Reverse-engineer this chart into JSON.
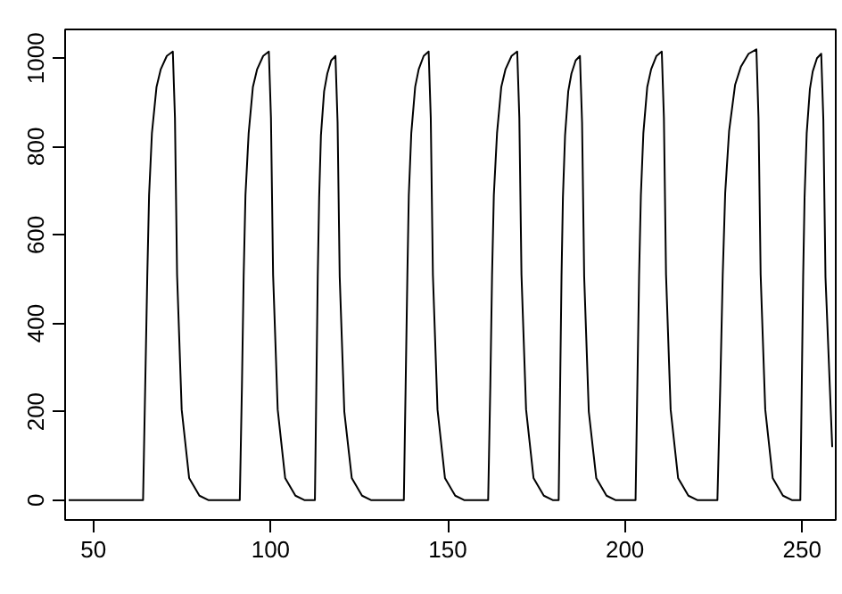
{
  "chart_data": {
    "type": "line",
    "color": "#000000",
    "xlim": [
      42,
      259.5
    ],
    "ylim": [
      -45,
      1065
    ],
    "xticks": [
      50,
      100,
      150,
      200,
      250
    ],
    "yticks": [
      0,
      200,
      400,
      600,
      800,
      1000
    ],
    "x": [
      43,
      64,
      64.6,
      65.2,
      65.7,
      66.5,
      67.8,
      69.0,
      70.7,
      72.4,
      73.0,
      73.6,
      74.9,
      77.0,
      79.9,
      82.4,
      91.3,
      91.9,
      92.4,
      92.9,
      93.8,
      95.0,
      96.2,
      97.9,
      99.5,
      100.1,
      100.7,
      102.0,
      104.1,
      107.0,
      109.5,
      112.5,
      112.9,
      113.3,
      113.7,
      114.2,
      115.1,
      116.0,
      117.1,
      118.3,
      118.9,
      119.5,
      120.8,
      122.9,
      125.8,
      128.3,
      137.6,
      138.1,
      138.6,
      139.0,
      139.7,
      140.8,
      141.8,
      143.2,
      144.6,
      145.2,
      145.8,
      147.1,
      149.2,
      152.1,
      154.6,
      161.4,
      162.0,
      162.5,
      163.0,
      163.9,
      165.1,
      166.3,
      168.0,
      169.6,
      170.2,
      170.8,
      172.1,
      174.2,
      177.1,
      179.6,
      181.3,
      181.7,
      182.1,
      182.5,
      183.1,
      184.0,
      184.9,
      186.1,
      187.3,
      187.9,
      188.5,
      189.8,
      191.9,
      194.8,
      197.3,
      203.0,
      203.5,
      204.0,
      204.5,
      205.2,
      206.3,
      207.4,
      208.9,
      210.4,
      211.0,
      211.6,
      212.9,
      215.0,
      217.9,
      220.4,
      226.1,
      226.9,
      227.6,
      228.3,
      229.4,
      231.1,
      232.7,
      234.9,
      237.1,
      237.7,
      238.3,
      239.6,
      241.7,
      244.6,
      247.1,
      249.5,
      249.9,
      250.3,
      250.7,
      251.3,
      252.2,
      253.0,
      254.2,
      255.4,
      256.0,
      256.6,
      258.5
    ],
    "values": [
      0,
      0,
      255,
      510,
      690,
      830,
      935,
      975,
      1005,
      1015,
      865,
      510,
      205,
      50,
      10,
      0,
      0,
      255,
      510,
      690,
      830,
      935,
      975,
      1005,
      1015,
      865,
      510,
      205,
      50,
      10,
      0,
      0,
      250,
      505,
      685,
      825,
      925,
      965,
      995,
      1005,
      855,
      505,
      200,
      50,
      10,
      0,
      0,
      255,
      510,
      690,
      830,
      935,
      975,
      1005,
      1015,
      865,
      510,
      205,
      50,
      10,
      0,
      0,
      255,
      510,
      690,
      830,
      935,
      975,
      1005,
      1015,
      865,
      510,
      205,
      50,
      10,
      0,
      0,
      250,
      505,
      685,
      825,
      925,
      965,
      995,
      1005,
      855,
      505,
      200,
      50,
      10,
      0,
      0,
      255,
      510,
      690,
      830,
      935,
      975,
      1005,
      1015,
      865,
      510,
      205,
      50,
      10,
      0,
      0,
      255,
      510,
      695,
      835,
      940,
      980,
      1010,
      1020,
      865,
      510,
      205,
      50,
      10,
      0,
      0,
      255,
      505,
      685,
      830,
      930,
      970,
      1000,
      1010,
      860,
      505,
      120
    ]
  }
}
